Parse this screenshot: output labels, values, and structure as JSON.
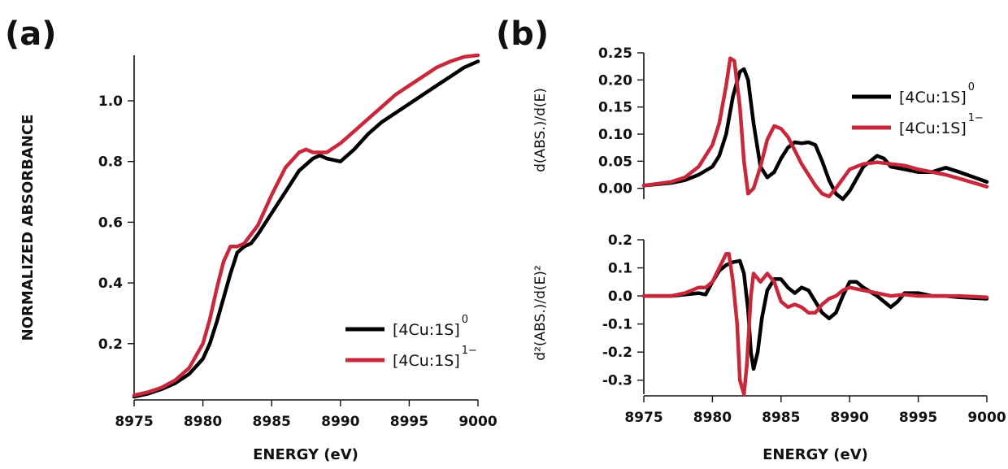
{
  "panel_labels": {
    "a": "(a)",
    "b": "(b)"
  },
  "colors": {
    "neutral": "#000000",
    "reduced": "#c8283c"
  },
  "chart_data": [
    {
      "id": "a",
      "type": "line",
      "title": "",
      "xlabel": "ENERGY (eV)",
      "ylabel": "NORMALIZED ABSORBANCE",
      "xlim": [
        8975,
        9000
      ],
      "ylim": [
        0.02,
        1.15
      ],
      "xticks": [
        "8975",
        "8980",
        "8985",
        "8990",
        "8995",
        "9000"
      ],
      "yticks": [
        "0.2",
        "0.4",
        "0.6",
        "0.8",
        "1.0"
      ],
      "legend": {
        "position": "bottom-right"
      },
      "series": [
        {
          "name": "[4Cu:1S]",
          "sup": "0",
          "color": "#000000",
          "x": [
            8975,
            8976,
            8977,
            8978,
            8979,
            8980,
            8980.5,
            8981,
            8981.5,
            8982,
            8982.5,
            8983,
            8983.5,
            8984,
            8985,
            8986,
            8987,
            8988,
            8988.5,
            8989,
            8990,
            8991,
            8992,
            8993,
            8994,
            8995,
            8996,
            8997,
            8998,
            8999,
            9000
          ],
          "y": [
            0.025,
            0.035,
            0.05,
            0.07,
            0.1,
            0.15,
            0.2,
            0.27,
            0.35,
            0.43,
            0.5,
            0.52,
            0.53,
            0.56,
            0.63,
            0.7,
            0.77,
            0.81,
            0.82,
            0.81,
            0.8,
            0.84,
            0.89,
            0.93,
            0.96,
            0.99,
            1.02,
            1.05,
            1.08,
            1.11,
            1.13
          ]
        },
        {
          "name": "[4Cu:1S]",
          "sup": "1−",
          "color": "#c8283c",
          "x": [
            8975,
            8976,
            8977,
            8978,
            8979,
            8980,
            8980.5,
            8981,
            8981.5,
            8982,
            8982.5,
            8983,
            8984,
            8985,
            8986,
            8987,
            8987.5,
            8988,
            8989,
            8990,
            8991,
            8992,
            8993,
            8994,
            8995,
            8996,
            8997,
            8998,
            8999,
            9000
          ],
          "y": [
            0.03,
            0.04,
            0.055,
            0.08,
            0.12,
            0.2,
            0.28,
            0.38,
            0.47,
            0.52,
            0.52,
            0.53,
            0.59,
            0.69,
            0.78,
            0.83,
            0.84,
            0.83,
            0.83,
            0.86,
            0.9,
            0.94,
            0.98,
            1.02,
            1.05,
            1.08,
            1.11,
            1.13,
            1.145,
            1.15
          ]
        }
      ]
    },
    {
      "id": "b-top",
      "type": "line",
      "title": "",
      "xlabel": "",
      "ylabel": "d(ABS.)/d(E)",
      "xlim": [
        8975,
        9000
      ],
      "ylim": [
        -0.02,
        0.25
      ],
      "yticks": [
        "0.00",
        "0.05",
        "0.10",
        "0.15",
        "0.20",
        "0.25"
      ],
      "legend": {
        "position": "top-right"
      },
      "series": [
        {
          "name": "[4Cu:1S]",
          "sup": "0",
          "color": "#000000",
          "x": [
            8975,
            8977,
            8978,
            8979,
            8980,
            8980.5,
            8981,
            8981.5,
            8982,
            8982.3,
            8982.6,
            8983,
            8983.5,
            8984,
            8984.5,
            8985,
            8985.5,
            8986,
            8986.5,
            8987,
            8987.5,
            8988,
            8988.5,
            8989,
            8989.5,
            8990,
            8991,
            8992,
            8992.5,
            8993,
            8994,
            8995,
            8996,
            8997,
            8998,
            9000
          ],
          "y": [
            0.005,
            0.01,
            0.015,
            0.025,
            0.04,
            0.06,
            0.1,
            0.17,
            0.215,
            0.22,
            0.2,
            0.12,
            0.04,
            0.02,
            0.03,
            0.055,
            0.075,
            0.085,
            0.083,
            0.085,
            0.08,
            0.05,
            0.015,
            -0.01,
            -0.02,
            -0.005,
            0.04,
            0.06,
            0.055,
            0.04,
            0.035,
            0.03,
            0.03,
            0.038,
            0.03,
            0.012
          ]
        },
        {
          "name": "[4Cu:1S]",
          "sup": "1−",
          "color": "#c8283c",
          "x": [
            8975,
            8977,
            8978,
            8979,
            8980,
            8980.5,
            8981,
            8981.3,
            8981.6,
            8982,
            8982.3,
            8982.6,
            8983,
            8983.5,
            8984,
            8984.5,
            8985,
            8985.5,
            8986,
            8986.5,
            8987,
            8987.5,
            8988,
            8988.5,
            8989,
            8990,
            8991,
            8992,
            8993,
            8994,
            8995,
            8996,
            8997,
            8998,
            9000
          ],
          "y": [
            0.005,
            0.012,
            0.02,
            0.04,
            0.08,
            0.12,
            0.19,
            0.24,
            0.235,
            0.15,
            0.05,
            -0.01,
            0.0,
            0.04,
            0.09,
            0.115,
            0.11,
            0.095,
            0.07,
            0.045,
            0.025,
            0.005,
            -0.01,
            -0.015,
            0.0,
            0.035,
            0.045,
            0.048,
            0.045,
            0.042,
            0.035,
            0.03,
            0.025,
            0.018,
            0.003
          ]
        }
      ]
    },
    {
      "id": "b-bottom",
      "type": "line",
      "title": "",
      "xlabel": "ENERGY (eV)",
      "ylabel": "d²(ABS.)/d(E)²",
      "xlim": [
        8975,
        9000
      ],
      "ylim": [
        -0.35,
        0.2
      ],
      "xticks": [
        "8975",
        "8980",
        "8985",
        "8990",
        "8995",
        "9000"
      ],
      "yticks": [
        "0.2",
        "0.1",
        "0.0",
        "-0.1",
        "-0.2",
        "-0.3"
      ],
      "series": [
        {
          "name": "[4Cu:1S]",
          "sup": "0",
          "color": "#000000",
          "x": [
            8975,
            8977,
            8978,
            8979,
            8979.5,
            8980,
            8980.5,
            8981,
            8981.5,
            8982,
            8982.3,
            8982.6,
            8982.8,
            8983,
            8983.3,
            8983.6,
            8984,
            8984.5,
            8985,
            8985.5,
            8986,
            8986.5,
            8987,
            8987.5,
            8988,
            8988.5,
            8989,
            8989.5,
            8990,
            8990.5,
            8991,
            8992,
            8993,
            8993.5,
            8994,
            8995,
            8996,
            8997,
            8998,
            9000
          ],
          "y": [
            0.0,
            0.0,
            0.005,
            0.01,
            0.005,
            0.05,
            0.09,
            0.11,
            0.12,
            0.125,
            0.08,
            -0.05,
            -0.2,
            -0.26,
            -0.2,
            -0.08,
            0.02,
            0.06,
            0.06,
            0.03,
            0.01,
            0.03,
            0.02,
            -0.02,
            -0.06,
            -0.08,
            -0.06,
            0.0,
            0.05,
            0.05,
            0.03,
            0.0,
            -0.04,
            -0.02,
            0.01,
            0.01,
            0.0,
            0.0,
            -0.005,
            -0.01
          ]
        },
        {
          "name": "[4Cu:1S]",
          "sup": "1−",
          "color": "#c8283c",
          "x": [
            8975,
            8977,
            8978,
            8979,
            8979.5,
            8980,
            8980.5,
            8981,
            8981.2,
            8981.5,
            8981.8,
            8982,
            8982.3,
            8982.5,
            8982.8,
            8983,
            8983.5,
            8984,
            8984.5,
            8985,
            8985.5,
            8986,
            8986.5,
            8987,
            8987.5,
            8988,
            8988.5,
            8989,
            8989.5,
            8990,
            8991,
            8992,
            8993,
            8994,
            8995,
            8996,
            8997,
            8998,
            9000
          ],
          "y": [
            0.0,
            0.0,
            0.01,
            0.03,
            0.03,
            0.05,
            0.1,
            0.15,
            0.15,
            0.05,
            -0.1,
            -0.3,
            -0.35,
            -0.25,
            0.0,
            0.08,
            0.05,
            0.08,
            0.05,
            -0.02,
            -0.04,
            -0.03,
            -0.04,
            -0.06,
            -0.06,
            -0.03,
            -0.01,
            0.0,
            0.02,
            0.03,
            0.02,
            0.01,
            0.0,
            0.005,
            0.0,
            0.0,
            0.0,
            0.0,
            -0.005
          ]
        }
      ]
    }
  ]
}
